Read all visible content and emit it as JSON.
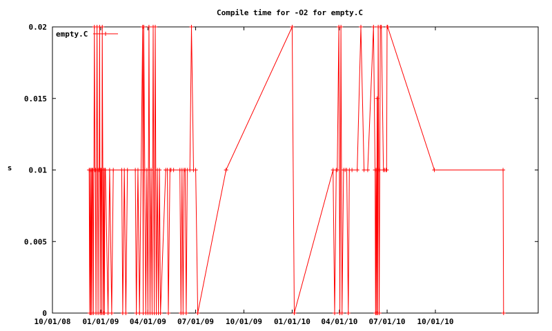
{
  "chart_data": {
    "type": "line",
    "title": "Compile time for -O2 for empty.C",
    "xlabel": "",
    "ylabel": "s",
    "xlim": [
      "2008-10-01",
      "2011-04-15"
    ],
    "ylim": [
      0,
      0.02
    ],
    "grid": false,
    "legend": "top-left",
    "x_tick_labels": [
      "10/01/08",
      "01/01/09",
      "04/01/09",
      "07/01/09",
      "10/01/09",
      "01/01/10",
      "04/01/10",
      "07/01/10",
      "10/01/10"
    ],
    "x_tick_dates": [
      "2008-10-01",
      "2009-01-01",
      "2009-04-01",
      "2009-07-01",
      "2009-10-01",
      "2010-01-01",
      "2010-04-01",
      "2010-07-01",
      "2010-10-01"
    ],
    "y_tick_labels": [
      "0",
      "0.005",
      "0.01",
      "0.015",
      "0.02"
    ],
    "y_tick_values": [
      0,
      0.005,
      0.01,
      0.015,
      0.02
    ],
    "series": [
      {
        "name": "empty.C",
        "color": "#ff0000",
        "points": [
          [
            "2008-12-10",
            0.01
          ],
          [
            "2008-12-11",
            0
          ],
          [
            "2008-12-12",
            0.01
          ],
          [
            "2008-12-13",
            0
          ],
          [
            "2008-12-14",
            0.01
          ],
          [
            "2008-12-15",
            0
          ],
          [
            "2008-12-16",
            0.01
          ],
          [
            "2008-12-17",
            0.01
          ],
          [
            "2008-12-18",
            0
          ],
          [
            "2008-12-19",
            0.01
          ],
          [
            "2008-12-20",
            0.02
          ],
          [
            "2008-12-21",
            0.01
          ],
          [
            "2008-12-22",
            0.01
          ],
          [
            "2008-12-23",
            0
          ],
          [
            "2008-12-24",
            0.01
          ],
          [
            "2008-12-25",
            0.02
          ],
          [
            "2008-12-26",
            0.01
          ],
          [
            "2008-12-27",
            0
          ],
          [
            "2008-12-28",
            0.01
          ],
          [
            "2008-12-29",
            0.01
          ],
          [
            "2008-12-30",
            0.02
          ],
          [
            "2008-12-31",
            0
          ],
          [
            "2009-01-01",
            0.01
          ],
          [
            "2009-01-02",
            0.01
          ],
          [
            "2009-01-03",
            0
          ],
          [
            "2009-01-04",
            0.02
          ],
          [
            "2009-01-05",
            0.01
          ],
          [
            "2009-01-06",
            0
          ],
          [
            "2009-01-07",
            0.01
          ],
          [
            "2009-01-08",
            0
          ],
          [
            "2009-01-09",
            0.01
          ],
          [
            "2009-01-10",
            0.01
          ],
          [
            "2009-01-15",
            0
          ],
          [
            "2009-01-18",
            0.01
          ],
          [
            "2009-01-22",
            0
          ],
          [
            "2009-01-25",
            0.01
          ],
          [
            "2009-02-10",
            0.01
          ],
          [
            "2009-02-12",
            0
          ],
          [
            "2009-02-15",
            0.01
          ],
          [
            "2009-02-18",
            0
          ],
          [
            "2009-02-21",
            0.01
          ],
          [
            "2009-03-08",
            0.01
          ],
          [
            "2009-03-10",
            0
          ],
          [
            "2009-03-13",
            0.01
          ],
          [
            "2009-03-16",
            0
          ],
          [
            "2009-03-19",
            0.01
          ],
          [
            "2009-03-22",
            0.02
          ],
          [
            "2009-03-23",
            0
          ],
          [
            "2009-03-24",
            0.02
          ],
          [
            "2009-03-26",
            0.01
          ],
          [
            "2009-03-28",
            0
          ],
          [
            "2009-03-30",
            0.01
          ],
          [
            "2009-04-01",
            0
          ],
          [
            "2009-04-03",
            0.02
          ],
          [
            "2009-04-05",
            0
          ],
          [
            "2009-04-07",
            0.01
          ],
          [
            "2009-04-09",
            0
          ],
          [
            "2009-04-11",
            0.02
          ],
          [
            "2009-04-13",
            0
          ],
          [
            "2009-04-15",
            0.02
          ],
          [
            "2009-04-17",
            0
          ],
          [
            "2009-04-19",
            0.01
          ],
          [
            "2009-04-21",
            0
          ],
          [
            "2009-04-23",
            0.01
          ],
          [
            "2009-04-25",
            0
          ],
          [
            "2009-05-05",
            0.01
          ],
          [
            "2009-05-08",
            0.01
          ],
          [
            "2009-05-10",
            0
          ],
          [
            "2009-05-13",
            0.01
          ],
          [
            "2009-05-15",
            0.01
          ],
          [
            "2009-05-20",
            0.01
          ],
          [
            "2009-06-01",
            0.01
          ],
          [
            "2009-06-03",
            0
          ],
          [
            "2009-06-05",
            0.01
          ],
          [
            "2009-06-07",
            0
          ],
          [
            "2009-06-09",
            0.01
          ],
          [
            "2009-06-11",
            0.01
          ],
          [
            "2009-06-13",
            0
          ],
          [
            "2009-06-15",
            0.01
          ],
          [
            "2009-06-20",
            0.01
          ],
          [
            "2009-06-23",
            0.02
          ],
          [
            "2009-06-27",
            0.01
          ],
          [
            "2009-07-01",
            0.01
          ],
          [
            "2009-07-05",
            0
          ],
          [
            "2009-08-28",
            0.01
          ],
          [
            "2010-01-01",
            0.02
          ],
          [
            "2010-01-05",
            0
          ],
          [
            "2010-03-20",
            0.01
          ],
          [
            "2010-03-23",
            0
          ],
          [
            "2010-03-26",
            0.01
          ],
          [
            "2010-03-28",
            0.01
          ],
          [
            "2010-03-31",
            0.02
          ],
          [
            "2010-04-02",
            0
          ],
          [
            "2010-04-04",
            0.02
          ],
          [
            "2010-04-06",
            0
          ],
          [
            "2010-04-09",
            0.01
          ],
          [
            "2010-04-12",
            0.01
          ],
          [
            "2010-04-15",
            0.01
          ],
          [
            "2010-04-18",
            0
          ],
          [
            "2010-04-20",
            0.01
          ],
          [
            "2010-04-25",
            0.01
          ],
          [
            "2010-05-05",
            0.01
          ],
          [
            "2010-05-12",
            0.02
          ],
          [
            "2010-05-18",
            0.01
          ],
          [
            "2010-05-25",
            0.01
          ],
          [
            "2010-06-05",
            0.02
          ],
          [
            "2010-06-08",
            0.01
          ],
          [
            "2010-06-09",
            0
          ],
          [
            "2010-06-10",
            0.01
          ],
          [
            "2010-06-11",
            0
          ],
          [
            "2010-06-12",
            0.015
          ],
          [
            "2010-06-13",
            0
          ],
          [
            "2010-06-14",
            0.02
          ],
          [
            "2010-06-15",
            0.01
          ],
          [
            "2010-06-16",
            0
          ],
          [
            "2010-06-17",
            0.01
          ],
          [
            "2010-06-18",
            0.02
          ],
          [
            "2010-06-20",
            0.02
          ],
          [
            "2010-06-24",
            0.01
          ],
          [
            "2010-06-26",
            0.01
          ],
          [
            "2010-06-29",
            0.01
          ],
          [
            "2010-06-30",
            0.01
          ],
          [
            "2010-07-01",
            0.02
          ],
          [
            "2010-07-02",
            0.02
          ],
          [
            "2010-09-29",
            0.01
          ],
          [
            "2011-02-07",
            0.01
          ],
          [
            "2011-02-08",
            0
          ]
        ]
      }
    ]
  }
}
